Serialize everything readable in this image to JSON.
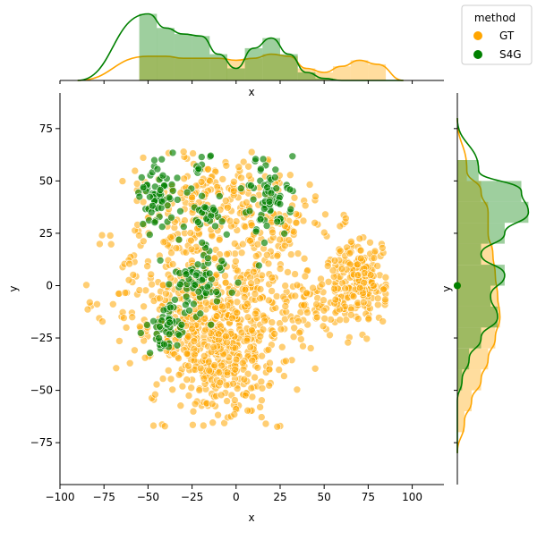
{
  "chart_data": {
    "type": "scatter",
    "subtype": "jointplot",
    "xlabel": "x",
    "ylabel": "y",
    "marginal_top_xlabel": "x",
    "marginal_right_ylabel": "y",
    "xlim": [
      -100,
      118
    ],
    "ylim": [
      -95,
      92
    ],
    "xticks": [
      -100,
      -75,
      -50,
      -25,
      0,
      25,
      50,
      75,
      100
    ],
    "yticks": [
      -75,
      -50,
      -25,
      0,
      25,
      50,
      75
    ],
    "xtick_labels": [
      "−100",
      "−75",
      "−50",
      "−25",
      "0",
      "25",
      "50",
      "75",
      "100"
    ],
    "ytick_labels": [
      "−75",
      "−50",
      "−25",
      "0",
      "25",
      "50",
      "75"
    ],
    "grid": false,
    "legend": {
      "title": "method",
      "placement": "outside-top-right"
    },
    "series": [
      {
        "name": "GT",
        "color": "#FFA500",
        "clusters": [
          {
            "cx": -5,
            "cy": -25,
            "sx": 18,
            "sy": 20,
            "n": 520
          },
          {
            "cx": 68,
            "cy": 2,
            "sx": 9,
            "sy": 10,
            "n": 230
          },
          {
            "cx": 15,
            "cy": 30,
            "sx": 16,
            "sy": 14,
            "n": 160
          },
          {
            "cx": -35,
            "cy": -5,
            "sx": 18,
            "sy": 22,
            "n": 240
          },
          {
            "cx": -20,
            "cy": 45,
            "sx": 16,
            "sy": 10,
            "n": 120
          },
          {
            "cx": 40,
            "cy": -5,
            "sx": 8,
            "sy": 10,
            "n": 60
          }
        ],
        "hist_x": {
          "bins": [
            -55,
            -45,
            -35,
            -25,
            -15,
            -5,
            5,
            15,
            25,
            35,
            45,
            55,
            65,
            75,
            85
          ],
          "density": [
            0.012,
            0.012,
            0.011,
            0.011,
            0.011,
            0.01,
            0.011,
            0.013,
            0.012,
            0.006,
            0.004,
            0.007,
            0.01,
            0.008
          ]
        },
        "hist_y": {
          "bins": [
            -70,
            -60,
            -50,
            -40,
            -30,
            -20,
            -10,
            0,
            10,
            20,
            30,
            40,
            50,
            60
          ],
          "density": [
            0.003,
            0.006,
            0.01,
            0.013,
            0.016,
            0.018,
            0.017,
            0.016,
            0.015,
            0.013,
            0.013,
            0.01,
            0.004
          ]
        }
      },
      {
        "name": "S4G",
        "color": "#008000",
        "clusters": [
          {
            "cx": -45,
            "cy": 42,
            "sx": 5,
            "sy": 9,
            "n": 70
          },
          {
            "cx": -40,
            "cy": -20,
            "sx": 6,
            "sy": 6,
            "n": 50
          },
          {
            "cx": -20,
            "cy": 2,
            "sx": 8,
            "sy": 7,
            "n": 70
          },
          {
            "cx": 20,
            "cy": 40,
            "sx": 8,
            "sy": 10,
            "n": 70
          },
          {
            "cx": -15,
            "cy": 35,
            "sx": 7,
            "sy": 5,
            "n": 30
          },
          {
            "cx": -20,
            "cy": 58,
            "sx": 4,
            "sy": 3,
            "n": 10
          }
        ],
        "hist_x": {
          "bins": [
            -55,
            -45,
            -35,
            -25,
            -15,
            -5,
            5,
            15,
            25,
            35,
            45,
            55,
            65,
            75,
            85
          ],
          "density": [
            0.033,
            0.026,
            0.023,
            0.022,
            0.013,
            0.006,
            0.016,
            0.021,
            0.013,
            0.004,
            0.001,
            0.0,
            0.0,
            0.0
          ]
        },
        "hist_y": {
          "bins": [
            -70,
            -60,
            -50,
            -40,
            -30,
            -20,
            -10,
            0,
            10,
            20,
            30,
            40,
            50,
            60
          ],
          "density": [
            0.0,
            0.0,
            0.002,
            0.005,
            0.01,
            0.017,
            0.014,
            0.02,
            0.01,
            0.02,
            0.03,
            0.027,
            0.009
          ]
        }
      }
    ]
  }
}
